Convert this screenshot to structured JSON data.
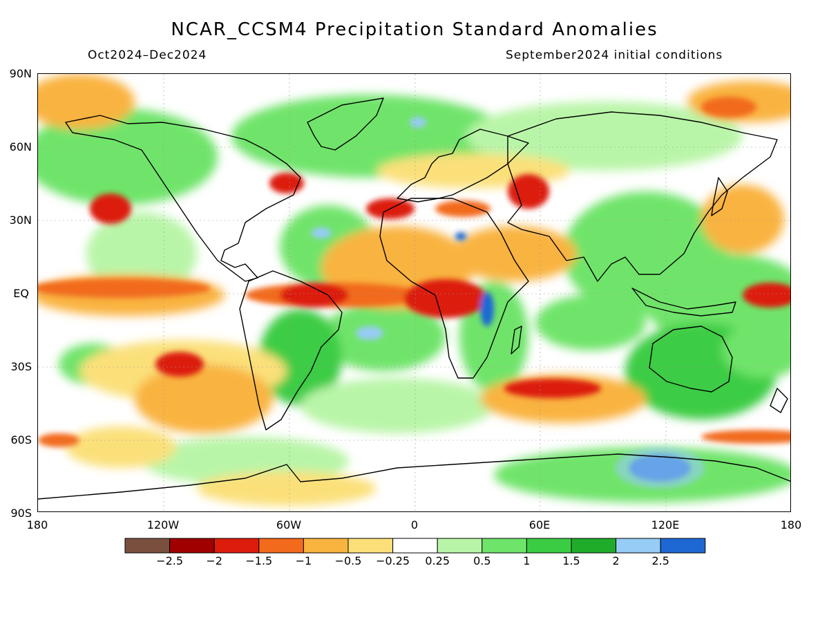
{
  "title": "NCAR_CCSM4 Precipitation Standard Anomalies",
  "period": "Oct2024–Dec2024",
  "init": "September2024 initial conditions",
  "lat_labels": [
    "90N",
    "60N",
    "30N",
    "EQ",
    "30S",
    "60S",
    "90S"
  ],
  "lon_labels": [
    "180",
    "120W",
    "60W",
    "0",
    "60E",
    "120E",
    "180"
  ],
  "colorbar": {
    "colors": [
      "#7a4f3e",
      "#a00000",
      "#dc1c0c",
      "#f26a1b",
      "#f9b33f",
      "#fbe07a",
      "#ffffff",
      "#b9f5a8",
      "#6fe46b",
      "#3ccc44",
      "#21ab2b",
      "#96ccf5",
      "#1e68d4"
    ],
    "labels": [
      "−2.5",
      "−2",
      "−1.5",
      "−1",
      "−0.5",
      "−0.25",
      "0.25",
      "0.5",
      "1",
      "1.5",
      "2",
      "2.5"
    ]
  }
}
